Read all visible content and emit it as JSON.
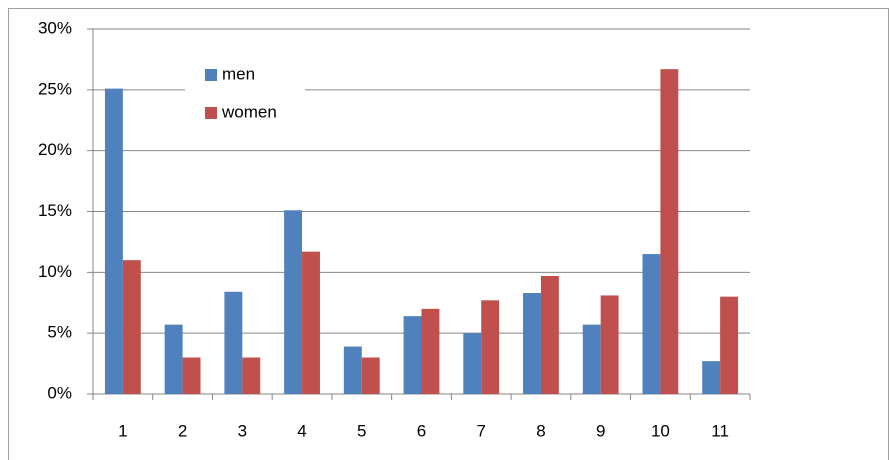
{
  "chart_data": {
    "type": "bar",
    "categories": [
      "1",
      "2",
      "3",
      "4",
      "5",
      "6",
      "7",
      "8",
      "9",
      "10",
      "11"
    ],
    "series": [
      {
        "name": "men",
        "color": "#4f81bd",
        "values": [
          25.1,
          5.7,
          8.4,
          15.1,
          3.9,
          6.4,
          5.0,
          8.3,
          5.7,
          11.5,
          2.7
        ]
      },
      {
        "name": "women",
        "color": "#c0504d",
        "values": [
          11.0,
          3.0,
          3.0,
          11.7,
          3.0,
          7.0,
          7.7,
          9.7,
          8.1,
          26.7,
          8.0
        ]
      }
    ],
    "ylim": [
      0,
      30
    ],
    "yticks": [
      {
        "value": 0,
        "label": "0%"
      },
      {
        "value": 5,
        "label": "5%"
      },
      {
        "value": 10,
        "label": "10%"
      },
      {
        "value": 15,
        "label": "15%"
      },
      {
        "value": 20,
        "label": "20%"
      },
      {
        "value": 25,
        "label": "25%"
      },
      {
        "value": 30,
        "label": "30%"
      }
    ],
    "grid": true,
    "legend": "top-left"
  }
}
